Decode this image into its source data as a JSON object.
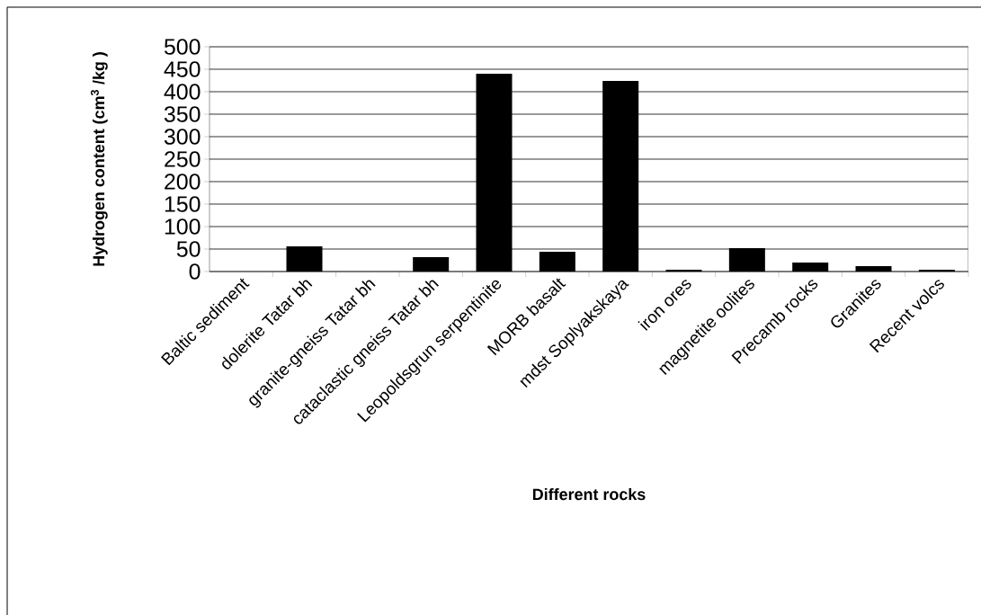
{
  "chart_data": {
    "type": "bar",
    "xlabel": "Different rocks",
    "ylabel": "Hydrogen content (cm$^{3}$ /kg )",
    "categories": [
      "Baltic sediment",
      "dolerite Tatar bh",
      "granite-gneiss Tatar bh",
      "cataclastic gneiss Tatar bh",
      "Leopoldsgrun serpentinite",
      "MORB basalt",
      "mdst Soplyakskaya",
      "iron ores",
      "magnetite oolites",
      "Precamb rocks",
      "Granites",
      "Recent volcs"
    ],
    "values": [
      0,
      56,
      0,
      32,
      440,
      44,
      424,
      4,
      52,
      20,
      12,
      4
    ],
    "color": "#000000",
    "ylim": [
      0,
      500
    ],
    "yticks": [
      0,
      50,
      100,
      150,
      200,
      250,
      300,
      350,
      400,
      450,
      500
    ],
    "grid": "y"
  }
}
